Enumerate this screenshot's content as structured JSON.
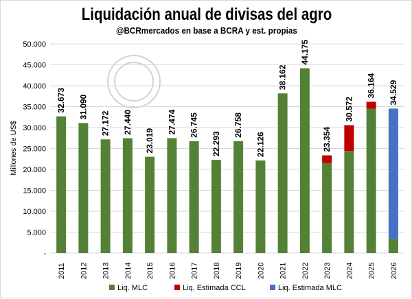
{
  "chart_data": {
    "type": "bar",
    "stacked": true,
    "title": "Liquidación anual de divisas del agro",
    "subtitle": "@BCRmercados  en base a BCRA y est. propias",
    "ylabel": "Millones de US$",
    "xlabel": "",
    "ylim": [
      0,
      50000
    ],
    "yticks": [
      "-",
      "5.000",
      "10.000",
      "15.000",
      "20.000",
      "25.000",
      "30.000",
      "35.000",
      "40.000",
      "45.000",
      "50.000"
    ],
    "grid": true,
    "legend_position": "bottom",
    "categories": [
      "2011",
      "2012",
      "2013",
      "2014",
      "2015",
      "2016",
      "2017",
      "2018",
      "2019",
      "2020",
      "2021",
      "2022",
      "2023",
      "2024",
      "2025",
      "2026"
    ],
    "series": [
      {
        "name": "Liq. MLC",
        "color": "#538135",
        "values": [
          32673,
          31090,
          27172,
          27440,
          23019,
          27474,
          26745,
          22293,
          26758,
          22126,
          38162,
          44175,
          21500,
          24400,
          34500,
          3400
        ]
      },
      {
        "name": "Liq. Estimada CCL",
        "color": "#c00000",
        "values": [
          0,
          0,
          0,
          0,
          0,
          0,
          0,
          0,
          0,
          0,
          0,
          0,
          1854,
          6172,
          1664,
          0
        ]
      },
      {
        "name": "Liq. Estimada MLC",
        "color": "#4472c4",
        "values": [
          0,
          0,
          0,
          0,
          0,
          0,
          0,
          0,
          0,
          0,
          0,
          0,
          0,
          0,
          0,
          31129
        ]
      }
    ],
    "data_labels": [
      "32.673",
      "31.090",
      "27.172",
      "27.440",
      "23.019",
      "27.474",
      "26.745",
      "22.293",
      "26.758",
      "22.126",
      "38.162",
      "44.175",
      "23.354",
      "30.572",
      "36.164",
      "34.529"
    ],
    "totals": [
      32673,
      31090,
      27172,
      27440,
      23019,
      27474,
      26745,
      22293,
      26758,
      22126,
      38162,
      44175,
      23354,
      30572,
      36164,
      34529
    ],
    "watermark": "BOLSA DE COMERCIO DE ROSARIO"
  }
}
